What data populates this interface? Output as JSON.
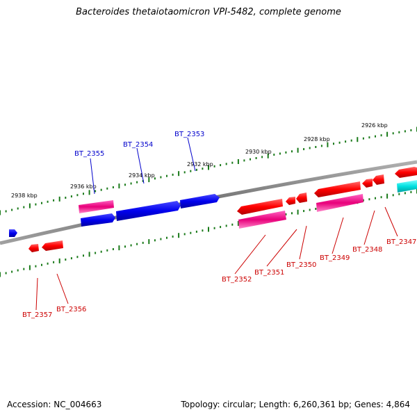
{
  "title": "Bacteroides thetaiotaomicron VPI-5482, complete genome",
  "accession": "Accession: NC_004663",
  "topology": "Topology: circular; Length: 6,260,361 bp; Genes: 4,864",
  "colors": {
    "backbone": "#808080",
    "tick": "#1a7a1a",
    "gene_red": "#ff0000",
    "gene_pink": "#ff1493",
    "gene_blue": "#0000ee",
    "gene_cyan": "#00e5e5",
    "label_red": "#cc0000",
    "label_blue": "#0000cc"
  },
  "scale_labels": [
    "2926 kbp",
    "2928 kbp",
    "2930 kbp",
    "2932 kbp",
    "2934 kbp",
    "2936 kbp",
    "2938 kbp"
  ],
  "gene_labels": {
    "above": [
      "BT_2353",
      "BT_2354",
      "BT_2355"
    ],
    "below": [
      "BT_2347",
      "BT_2348",
      "BT_2349",
      "BT_2350",
      "BT_2351",
      "BT_2352",
      "BT_2356",
      "BT_2357"
    ]
  }
}
